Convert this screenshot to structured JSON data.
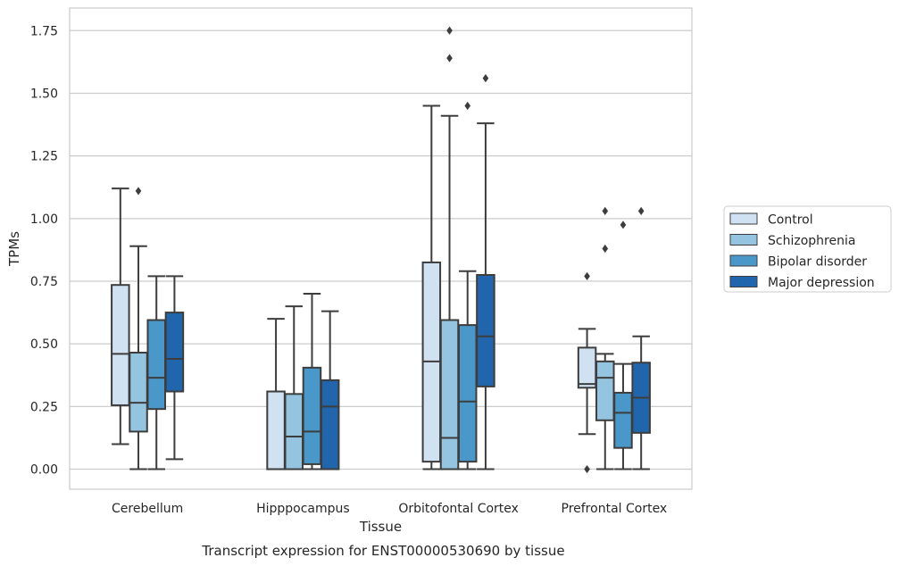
{
  "chart_data": {
    "type": "box",
    "xlabel": "Tissue",
    "ylabel": "TPMs",
    "caption": "Transcript expression for ENST00000530690 by tissue",
    "ylim": [
      -0.08,
      1.84
    ],
    "yticks": [
      0.0,
      0.25,
      0.5,
      0.75,
      1.0,
      1.25,
      1.5,
      1.75
    ],
    "ytick_labels": [
      "0.00",
      "0.25",
      "0.50",
      "0.75",
      "1.00",
      "1.25",
      "1.50",
      "1.75"
    ],
    "grid": "horizontal",
    "legend_position": "right",
    "categories": [
      "Cerebellum",
      "Hipppocampus",
      "Orbitofontal Cortex",
      "Prefrontal Cortex"
    ],
    "series": [
      {
        "name": "Control",
        "color": "#d0e1f2",
        "boxes": [
          {
            "whisker_low": 0.1,
            "q1": 0.255,
            "median": 0.46,
            "q3": 0.735,
            "whisker_high": 1.12,
            "outliers": []
          },
          {
            "whisker_low": 0.0,
            "q1": 0.0,
            "median": 0.0,
            "q3": 0.31,
            "whisker_high": 0.6,
            "outliers": []
          },
          {
            "whisker_low": 0.0,
            "q1": 0.03,
            "median": 0.43,
            "q3": 0.825,
            "whisker_high": 1.45,
            "outliers": []
          },
          {
            "whisker_low": 0.14,
            "q1": 0.325,
            "median": 0.34,
            "q3": 0.485,
            "whisker_high": 0.56,
            "outliers": [
              0.77,
              0.0
            ]
          }
        ]
      },
      {
        "name": "Schizophrenia",
        "color": "#94c4df",
        "boxes": [
          {
            "whisker_low": 0.0,
            "q1": 0.15,
            "median": 0.265,
            "q3": 0.465,
            "whisker_high": 0.89,
            "outliers": [
              1.11
            ]
          },
          {
            "whisker_low": 0.0,
            "q1": 0.0,
            "median": 0.13,
            "q3": 0.3,
            "whisker_high": 0.65,
            "outliers": []
          },
          {
            "whisker_low": 0.0,
            "q1": 0.0,
            "median": 0.125,
            "q3": 0.595,
            "whisker_high": 1.41,
            "outliers": [
              1.75,
              1.64
            ]
          },
          {
            "whisker_low": 0.0,
            "q1": 0.195,
            "median": 0.365,
            "q3": 0.43,
            "whisker_high": 0.46,
            "outliers": [
              1.03,
              0.88
            ]
          }
        ]
      },
      {
        "name": "Bipolar disorder",
        "color": "#4a98c9",
        "boxes": [
          {
            "whisker_low": 0.0,
            "q1": 0.24,
            "median": 0.365,
            "q3": 0.595,
            "whisker_high": 0.77,
            "outliers": []
          },
          {
            "whisker_low": 0.0,
            "q1": 0.02,
            "median": 0.15,
            "q3": 0.405,
            "whisker_high": 0.7,
            "outliers": []
          },
          {
            "whisker_low": 0.0,
            "q1": 0.03,
            "median": 0.27,
            "q3": 0.575,
            "whisker_high": 0.79,
            "outliers": [
              1.45
            ]
          },
          {
            "whisker_low": 0.0,
            "q1": 0.085,
            "median": 0.225,
            "q3": 0.305,
            "whisker_high": 0.42,
            "outliers": [
              0.975
            ]
          }
        ]
      },
      {
        "name": "Major depression",
        "color": "#2166ac",
        "boxes": [
          {
            "whisker_low": 0.04,
            "q1": 0.31,
            "median": 0.44,
            "q3": 0.625,
            "whisker_high": 0.77,
            "outliers": []
          },
          {
            "whisker_low": 0.0,
            "q1": 0.0,
            "median": 0.25,
            "q3": 0.355,
            "whisker_high": 0.63,
            "outliers": []
          },
          {
            "whisker_low": 0.0,
            "q1": 0.33,
            "median": 0.53,
            "q3": 0.775,
            "whisker_high": 1.38,
            "outliers": [
              1.56
            ]
          },
          {
            "whisker_low": 0.0,
            "q1": 0.145,
            "median": 0.285,
            "q3": 0.425,
            "whisker_high": 0.53,
            "outliers": [
              1.03
            ]
          }
        ]
      }
    ]
  }
}
